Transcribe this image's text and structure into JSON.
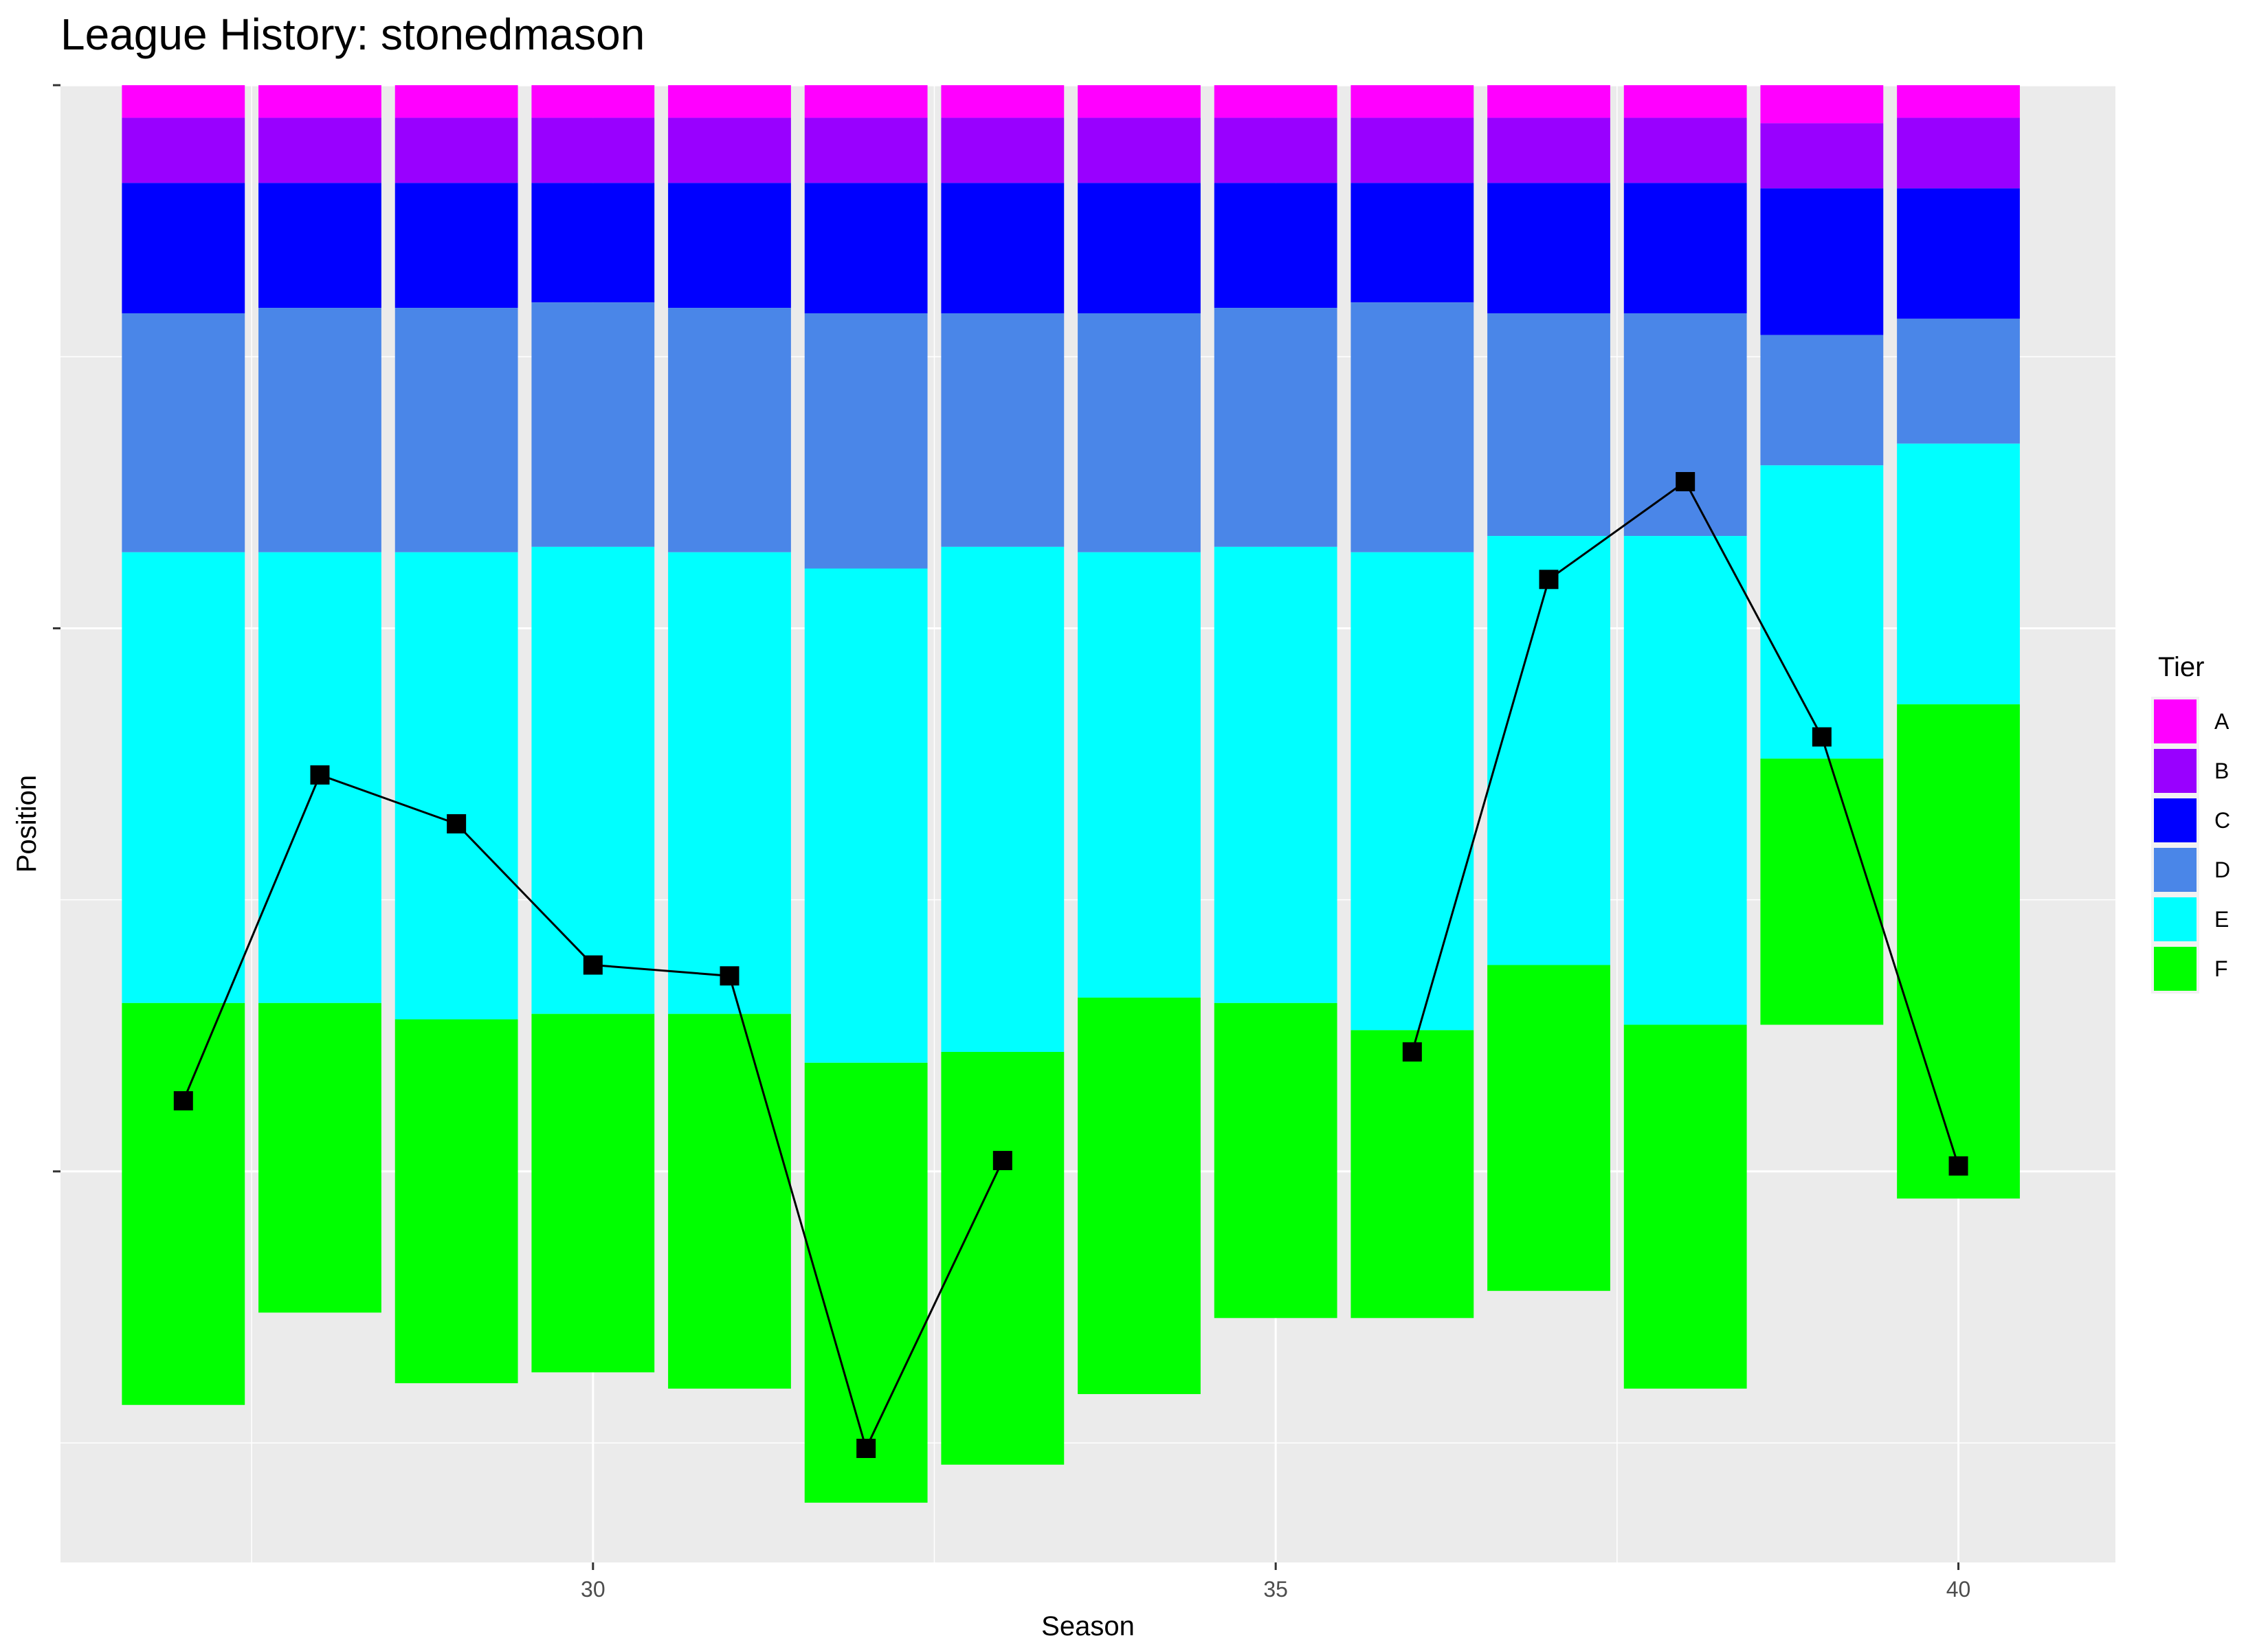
{
  "chart_data": {
    "type": "bar",
    "title": "League History: stonedmason",
    "xlabel": "Season",
    "ylabel": "Position",
    "x_ticks": [
      30,
      35,
      40
    ],
    "xlim": [
      26.1,
      41.15
    ],
    "ylim": [
      272,
      0
    ],
    "y_scale": "reversed",
    "grid": true,
    "legend": {
      "title": "Tier",
      "position": "right"
    },
    "seasons": [
      27,
      28,
      29,
      30,
      31,
      32,
      33,
      34,
      35,
      36,
      37,
      38,
      39,
      40
    ],
    "series": [
      {
        "name": "A",
        "color": "#FF00FF",
        "values": [
          6,
          6,
          6,
          6,
          6,
          6,
          6,
          6,
          6,
          6,
          6,
          6,
          7,
          6
        ]
      },
      {
        "name": "B",
        "color": "#9900FF",
        "values": [
          12,
          12,
          12,
          12,
          12,
          12,
          12,
          12,
          12,
          12,
          12,
          12,
          12,
          13
        ]
      },
      {
        "name": "C",
        "color": "#0000FF",
        "values": [
          24,
          23,
          23,
          22,
          23,
          24,
          24,
          24,
          23,
          22,
          24,
          24,
          27,
          24
        ]
      },
      {
        "name": "D",
        "color": "#4A86E8",
        "values": [
          44,
          45,
          45,
          45,
          45,
          47,
          43,
          44,
          44,
          46,
          41,
          41,
          24,
          23
        ]
      },
      {
        "name": "E",
        "color": "#00FFFF",
        "values": [
          83,
          83,
          86,
          86,
          85,
          91,
          93,
          82,
          84,
          88,
          79,
          90,
          54,
          48
        ]
      },
      {
        "name": "F",
        "color": "#00FF00",
        "values": [
          74,
          57,
          67,
          66,
          69,
          81,
          76,
          73,
          58,
          53,
          60,
          67,
          49,
          91
        ]
      }
    ],
    "position_line": {
      "x": [
        27,
        28,
        29,
        30,
        31,
        32,
        33,
        34,
        35,
        36,
        37,
        38,
        39,
        40
      ],
      "y": [
        187,
        127,
        136,
        162,
        164,
        251,
        198,
        null,
        null,
        178,
        91,
        73,
        120,
        199
      ],
      "color": "#000000",
      "marker": "square"
    }
  }
}
